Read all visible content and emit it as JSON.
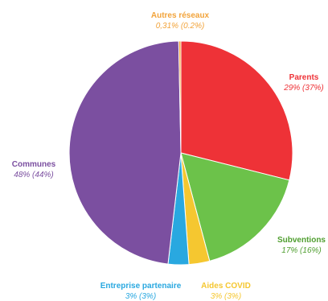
{
  "chart_data": {
    "type": "pie",
    "title": "",
    "start_angle_deg": 0,
    "direction": "clockwise",
    "slices": [
      {
        "id": "parents",
        "label": "Parents",
        "value": 29,
        "value_label": "29% (37%)",
        "color": "#ee3237"
      },
      {
        "id": "subventions",
        "label": "Subventions",
        "value": 17,
        "value_label": "17% (16%)",
        "color": "#6cc24a"
      },
      {
        "id": "aides-covid",
        "label": "Aides COVID",
        "value": 3,
        "value_label": "3% (3%)",
        "color": "#f5c730"
      },
      {
        "id": "entreprise-partenaire",
        "label": "Entreprise partenaire",
        "value": 3,
        "value_label": "3% (3%)",
        "color": "#29a8e0"
      },
      {
        "id": "communes",
        "label": "Communes",
        "value": 48,
        "value_label": "48% (44%)",
        "color": "#7b4fa0"
      },
      {
        "id": "autres-reseaux",
        "label": "Autres réseaux",
        "value": 0.31,
        "value_label": "0,31% (0.2%)",
        "color": "#f2a33a"
      }
    ]
  }
}
